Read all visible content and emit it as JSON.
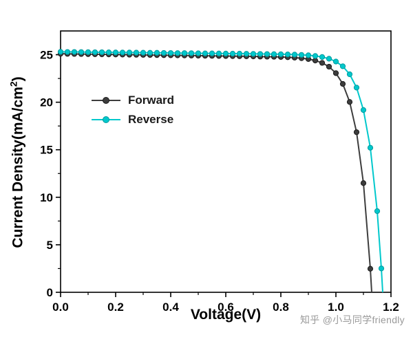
{
  "watermark": "知乎 @小马同学friendly",
  "chart_data": {
    "type": "line",
    "title": "",
    "xlabel": "Voltage(V)",
    "ylabel": {
      "main": "Current Density(mA/cm",
      "sup": "2",
      "end": ")"
    },
    "xlim": [
      0,
      1.2
    ],
    "ylim": [
      0,
      27.5
    ],
    "xticks": [
      0,
      0.2,
      0.4,
      0.6,
      0.8,
      1.0,
      1.2
    ],
    "xtick_labels": [
      "0.0",
      "0.2",
      "0.4",
      "0.6",
      "0.8",
      "1.0",
      "1.2"
    ],
    "xminor": [
      0.1,
      0.3,
      0.5,
      0.7,
      0.9,
      1.1
    ],
    "yticks": [
      0,
      5,
      10,
      15,
      20,
      25
    ],
    "ytick_labels": [
      "0",
      "5",
      "10",
      "15",
      "20",
      "25"
    ],
    "yminor": [
      2.5,
      7.5,
      12.5,
      17.5,
      22.5
    ],
    "grid": false,
    "legend_position": "upper-left-inside",
    "series": [
      {
        "name": "Forward",
        "color": "#3d3d3d",
        "edge": "#1c1c1c",
        "x": [
          0,
          0.025,
          0.05,
          0.075,
          0.1,
          0.125,
          0.15,
          0.175,
          0.2,
          0.225,
          0.25,
          0.275,
          0.3,
          0.325,
          0.35,
          0.375,
          0.4,
          0.425,
          0.45,
          0.475,
          0.5,
          0.525,
          0.55,
          0.575,
          0.6,
          0.625,
          0.65,
          0.675,
          0.7,
          0.725,
          0.75,
          0.775,
          0.8,
          0.825,
          0.85,
          0.875,
          0.9,
          0.925,
          0.95,
          0.975,
          1.0,
          1.025,
          1.05,
          1.075,
          1.1,
          1.125,
          1.13
        ],
        "y": [
          25.1,
          25.09,
          25.08,
          25.07,
          25.06,
          25.05,
          25.04,
          25.03,
          25.02,
          25.01,
          25.0,
          24.99,
          24.98,
          24.97,
          24.96,
          24.95,
          24.94,
          24.93,
          24.92,
          24.91,
          24.9,
          24.89,
          24.88,
          24.87,
          24.86,
          24.85,
          24.84,
          24.83,
          24.82,
          24.8,
          24.79,
          24.78,
          24.76,
          24.73,
          24.69,
          24.63,
          24.54,
          24.39,
          24.14,
          23.74,
          23.06,
          21.93,
          20.03,
          16.85,
          11.49,
          2.48,
          0.0
        ]
      },
      {
        "name": "Reverse",
        "color": "#00c8cc",
        "edge": "#009a9e",
        "x": [
          0,
          0.025,
          0.05,
          0.075,
          0.1,
          0.125,
          0.15,
          0.175,
          0.2,
          0.225,
          0.25,
          0.275,
          0.3,
          0.325,
          0.35,
          0.375,
          0.4,
          0.425,
          0.45,
          0.475,
          0.5,
          0.525,
          0.55,
          0.575,
          0.6,
          0.625,
          0.65,
          0.675,
          0.7,
          0.725,
          0.75,
          0.775,
          0.8,
          0.825,
          0.85,
          0.875,
          0.9,
          0.925,
          0.95,
          0.975,
          1.0,
          1.025,
          1.05,
          1.075,
          1.1,
          1.125,
          1.15,
          1.165,
          1.17
        ],
        "y": [
          25.3,
          25.29,
          25.29,
          25.28,
          25.27,
          25.26,
          25.26,
          25.25,
          25.24,
          25.23,
          25.23,
          25.22,
          25.21,
          25.2,
          25.2,
          25.19,
          25.18,
          25.17,
          25.17,
          25.16,
          25.15,
          25.14,
          25.14,
          25.13,
          25.12,
          25.11,
          25.11,
          25.1,
          25.09,
          25.08,
          25.07,
          25.06,
          25.05,
          25.03,
          25.01,
          24.98,
          24.94,
          24.87,
          24.76,
          24.58,
          24.28,
          23.78,
          22.94,
          21.54,
          19.18,
          15.21,
          8.54,
          2.51,
          0.0
        ]
      }
    ]
  }
}
